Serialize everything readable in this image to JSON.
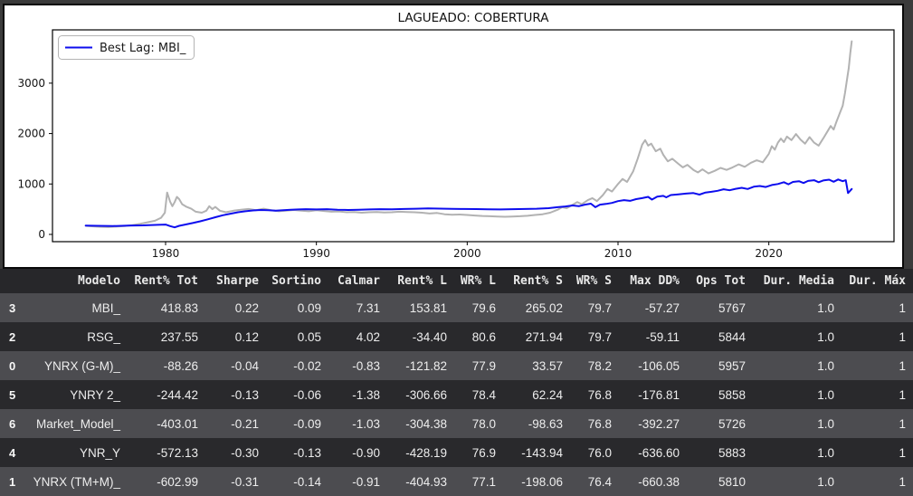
{
  "colors": {
    "page_bg": "#3b3b3b",
    "figure_bg": "#ffffff",
    "mbi_line": "#0d0dee",
    "benchmark_line": "#b2b2b2",
    "table_header_bg": "#27272a",
    "row_light": "#4c4c50",
    "row_dark": "#29292c"
  },
  "chart_data": {
    "type": "line",
    "title": "LAGUEADO: COBERTURA",
    "legend_label": "Best Lag: MBI_",
    "legend_position": "upper left",
    "xlabel": "",
    "ylabel": "",
    "x_ticks": [
      1980,
      1990,
      2000,
      2010,
      2020
    ],
    "y_ticks": [
      0,
      1000,
      2000,
      3000
    ],
    "xlim": [
      1972.5,
      2028.3
    ],
    "ylim": [
      -144,
      4057
    ],
    "grid": false,
    "series": [
      {
        "name": "COBERTURA",
        "color": "#b2b2b2",
        "points": [
          [
            1974.7,
            170
          ],
          [
            1975.2,
            160
          ],
          [
            1975.7,
            150
          ],
          [
            1976.2,
            145
          ],
          [
            1976.8,
            155
          ],
          [
            1977.3,
            165
          ],
          [
            1977.8,
            185
          ],
          [
            1978.3,
            210
          ],
          [
            1978.8,
            240
          ],
          [
            1979.3,
            270
          ],
          [
            1979.7,
            330
          ],
          [
            1979.95,
            430
          ],
          [
            1980.1,
            830
          ],
          [
            1980.3,
            650
          ],
          [
            1980.45,
            560
          ],
          [
            1980.6,
            640
          ],
          [
            1980.75,
            745
          ],
          [
            1980.9,
            700
          ],
          [
            1981.1,
            600
          ],
          [
            1981.4,
            545
          ],
          [
            1981.7,
            510
          ],
          [
            1982.0,
            450
          ],
          [
            1982.4,
            430
          ],
          [
            1982.7,
            470
          ],
          [
            1982.9,
            560
          ],
          [
            1983.1,
            500
          ],
          [
            1983.3,
            545
          ],
          [
            1983.6,
            470
          ],
          [
            1984.0,
            440
          ],
          [
            1984.5,
            470
          ],
          [
            1985.0,
            490
          ],
          [
            1985.5,
            505
          ],
          [
            1986.0,
            480
          ],
          [
            1986.5,
            510
          ],
          [
            1987.0,
            480
          ],
          [
            1987.5,
            460
          ],
          [
            1988.0,
            470
          ],
          [
            1988.5,
            485
          ],
          [
            1989.0,
            470
          ],
          [
            1989.5,
            460
          ],
          [
            1990.0,
            480
          ],
          [
            1990.5,
            465
          ],
          [
            1991.0,
            450
          ],
          [
            1991.5,
            455
          ],
          [
            1992.0,
            440
          ],
          [
            1992.5,
            445
          ],
          [
            1993.0,
            430
          ],
          [
            1993.5,
            440
          ],
          [
            1994.0,
            445
          ],
          [
            1994.5,
            435
          ],
          [
            1995.0,
            440
          ],
          [
            1995.5,
            450
          ],
          [
            1996.0,
            445
          ],
          [
            1996.5,
            440
          ],
          [
            1997.0,
            430
          ],
          [
            1997.5,
            415
          ],
          [
            1998.0,
            425
          ],
          [
            1998.5,
            400
          ],
          [
            1999.0,
            390
          ],
          [
            1999.5,
            395
          ],
          [
            2000.0,
            385
          ],
          [
            2000.5,
            375
          ],
          [
            2001.0,
            365
          ],
          [
            2001.5,
            360
          ],
          [
            2002.0,
            355
          ],
          [
            2002.5,
            350
          ],
          [
            2003.0,
            355
          ],
          [
            2003.5,
            360
          ],
          [
            2004.0,
            370
          ],
          [
            2004.5,
            385
          ],
          [
            2005.0,
            400
          ],
          [
            2005.5,
            430
          ],
          [
            2006.0,
            490
          ],
          [
            2006.3,
            540
          ],
          [
            2006.6,
            520
          ],
          [
            2007.0,
            590
          ],
          [
            2007.3,
            640
          ],
          [
            2007.6,
            600
          ],
          [
            2008.0,
            680
          ],
          [
            2008.3,
            720
          ],
          [
            2008.6,
            660
          ],
          [
            2009.0,
            780
          ],
          [
            2009.3,
            900
          ],
          [
            2009.6,
            850
          ],
          [
            2010.0,
            1000
          ],
          [
            2010.3,
            1100
          ],
          [
            2010.6,
            1040
          ],
          [
            2011.0,
            1250
          ],
          [
            2011.3,
            1500
          ],
          [
            2011.6,
            1780
          ],
          [
            2011.8,
            1870
          ],
          [
            2012.0,
            1760
          ],
          [
            2012.2,
            1800
          ],
          [
            2012.5,
            1650
          ],
          [
            2012.8,
            1700
          ],
          [
            2013.0,
            1580
          ],
          [
            2013.3,
            1450
          ],
          [
            2013.6,
            1500
          ],
          [
            2014.0,
            1400
          ],
          [
            2014.3,
            1330
          ],
          [
            2014.6,
            1380
          ],
          [
            2015.0,
            1280
          ],
          [
            2015.3,
            1230
          ],
          [
            2015.6,
            1290
          ],
          [
            2016.0,
            1210
          ],
          [
            2016.4,
            1260
          ],
          [
            2016.8,
            1320
          ],
          [
            2017.2,
            1280
          ],
          [
            2017.6,
            1330
          ],
          [
            2018.0,
            1390
          ],
          [
            2018.4,
            1340
          ],
          [
            2018.8,
            1420
          ],
          [
            2019.2,
            1470
          ],
          [
            2019.6,
            1430
          ],
          [
            2020.0,
            1600
          ],
          [
            2020.2,
            1750
          ],
          [
            2020.4,
            1680
          ],
          [
            2020.6,
            1820
          ],
          [
            2020.8,
            1900
          ],
          [
            2021.0,
            1830
          ],
          [
            2021.2,
            1940
          ],
          [
            2021.5,
            1870
          ],
          [
            2021.8,
            1990
          ],
          [
            2022.1,
            1880
          ],
          [
            2022.4,
            1800
          ],
          [
            2022.7,
            1930
          ],
          [
            2023.0,
            1820
          ],
          [
            2023.3,
            1760
          ],
          [
            2023.6,
            1900
          ],
          [
            2023.9,
            2050
          ],
          [
            2024.1,
            2150
          ],
          [
            2024.3,
            2080
          ],
          [
            2024.5,
            2250
          ],
          [
            2024.7,
            2400
          ],
          [
            2024.9,
            2550
          ],
          [
            2025.05,
            2800
          ],
          [
            2025.2,
            3100
          ],
          [
            2025.3,
            3300
          ],
          [
            2025.4,
            3600
          ],
          [
            2025.5,
            3830
          ]
        ]
      },
      {
        "name": "Best Lag: MBI_",
        "color": "#0d0dee",
        "points": [
          [
            1974.7,
            175
          ],
          [
            1975.5,
            170
          ],
          [
            1976.5,
            165
          ],
          [
            1977.5,
            175
          ],
          [
            1978.5,
            180
          ],
          [
            1979.5,
            190
          ],
          [
            1980.0,
            195
          ],
          [
            1980.3,
            165
          ],
          [
            1980.6,
            140
          ],
          [
            1980.9,
            170
          ],
          [
            1981.3,
            195
          ],
          [
            1981.8,
            225
          ],
          [
            1982.3,
            260
          ],
          [
            1982.8,
            300
          ],
          [
            1983.3,
            340
          ],
          [
            1983.8,
            380
          ],
          [
            1984.3,
            410
          ],
          [
            1984.8,
            440
          ],
          [
            1985.3,
            460
          ],
          [
            1985.8,
            475
          ],
          [
            1986.3,
            485
          ],
          [
            1986.8,
            480
          ],
          [
            1987.3,
            470
          ],
          [
            1987.8,
            480
          ],
          [
            1988.3,
            490
          ],
          [
            1988.8,
            495
          ],
          [
            1989.3,
            500
          ],
          [
            1990.0,
            495
          ],
          [
            1990.7,
            500
          ],
          [
            1991.4,
            490
          ],
          [
            1992.1,
            485
          ],
          [
            1992.8,
            490
          ],
          [
            1993.5,
            495
          ],
          [
            1994.2,
            500
          ],
          [
            1995.0,
            498
          ],
          [
            1995.8,
            505
          ],
          [
            1996.6,
            510
          ],
          [
            1997.4,
            515
          ],
          [
            1998.2,
            512
          ],
          [
            1999.0,
            508
          ],
          [
            1999.8,
            505
          ],
          [
            2000.6,
            502
          ],
          [
            2001.4,
            498
          ],
          [
            2002.2,
            495
          ],
          [
            2003.0,
            500
          ],
          [
            2003.8,
            505
          ],
          [
            2004.6,
            510
          ],
          [
            2005.4,
            520
          ],
          [
            2006.0,
            540
          ],
          [
            2006.5,
            555
          ],
          [
            2007.0,
            575
          ],
          [
            2007.4,
            560
          ],
          [
            2007.8,
            590
          ],
          [
            2008.2,
            610
          ],
          [
            2008.5,
            540
          ],
          [
            2008.8,
            590
          ],
          [
            2009.2,
            605
          ],
          [
            2009.6,
            625
          ],
          [
            2010.0,
            660
          ],
          [
            2010.4,
            680
          ],
          [
            2010.8,
            665
          ],
          [
            2011.2,
            700
          ],
          [
            2011.6,
            720
          ],
          [
            2012.0,
            745
          ],
          [
            2012.25,
            690
          ],
          [
            2012.6,
            750
          ],
          [
            2013.0,
            765
          ],
          [
            2013.2,
            735
          ],
          [
            2013.5,
            780
          ],
          [
            2014.0,
            795
          ],
          [
            2014.5,
            810
          ],
          [
            2015.0,
            820
          ],
          [
            2015.4,
            790
          ],
          [
            2015.8,
            830
          ],
          [
            2016.2,
            845
          ],
          [
            2016.6,
            865
          ],
          [
            2017.0,
            895
          ],
          [
            2017.4,
            875
          ],
          [
            2017.8,
            905
          ],
          [
            2018.2,
            925
          ],
          [
            2018.6,
            900
          ],
          [
            2019.0,
            945
          ],
          [
            2019.4,
            960
          ],
          [
            2019.8,
            940
          ],
          [
            2020.2,
            980
          ],
          [
            2020.6,
            1000
          ],
          [
            2021.0,
            1035
          ],
          [
            2021.3,
            995
          ],
          [
            2021.6,
            1040
          ],
          [
            2022.0,
            1055
          ],
          [
            2022.3,
            1020
          ],
          [
            2022.6,
            1060
          ],
          [
            2023.0,
            1075
          ],
          [
            2023.3,
            1035
          ],
          [
            2023.6,
            1070
          ],
          [
            2024.0,
            1085
          ],
          [
            2024.3,
            1045
          ],
          [
            2024.6,
            1090
          ],
          [
            2024.9,
            1055
          ],
          [
            2025.1,
            1075
          ],
          [
            2025.25,
            820
          ],
          [
            2025.35,
            850
          ],
          [
            2025.5,
            900
          ]
        ]
      }
    ]
  },
  "table": {
    "columns": [
      "Modelo",
      "Rent% Tot",
      "Sharpe",
      "Sortino",
      "Calmar",
      "Rent% L",
      "WR% L",
      "Rent% S",
      "WR% S",
      "Max DD%",
      "Ops Tot",
      "Dur. Media",
      "Dur. Máx"
    ],
    "rows": [
      {
        "idx": "3",
        "cells": [
          "MBI_",
          "418.83",
          "0.22",
          "0.09",
          "7.31",
          "153.81",
          "79.6",
          "265.02",
          "79.7",
          "-57.27",
          "5767",
          "1.0",
          "1"
        ]
      },
      {
        "idx": "2",
        "cells": [
          "RSG_",
          "237.55",
          "0.12",
          "0.05",
          "4.02",
          "-34.40",
          "80.6",
          "271.94",
          "79.7",
          "-59.11",
          "5844",
          "1.0",
          "1"
        ]
      },
      {
        "idx": "0",
        "cells": [
          "YNRX (G-M)_",
          "-88.26",
          "-0.04",
          "-0.02",
          "-0.83",
          "-121.82",
          "77.9",
          "33.57",
          "78.2",
          "-106.05",
          "5957",
          "1.0",
          "1"
        ]
      },
      {
        "idx": "5",
        "cells": [
          "YNRY 2_",
          "-244.42",
          "-0.13",
          "-0.06",
          "-1.38",
          "-306.66",
          "78.4",
          "62.24",
          "76.8",
          "-176.81",
          "5858",
          "1.0",
          "1"
        ]
      },
      {
        "idx": "6",
        "cells": [
          "Market_Model_",
          "-403.01",
          "-0.21",
          "-0.09",
          "-1.03",
          "-304.38",
          "78.0",
          "-98.63",
          "76.8",
          "-392.27",
          "5726",
          "1.0",
          "1"
        ]
      },
      {
        "idx": "4",
        "cells": [
          "YNR_Y",
          "-572.13",
          "-0.30",
          "-0.13",
          "-0.90",
          "-428.19",
          "76.9",
          "-143.94",
          "76.0",
          "-636.60",
          "5883",
          "1.0",
          "1"
        ]
      },
      {
        "idx": "1",
        "cells": [
          "YNRX (TM+M)_",
          "-602.99",
          "-0.31",
          "-0.14",
          "-0.91",
          "-404.93",
          "77.1",
          "-198.06",
          "76.4",
          "-660.38",
          "5810",
          "1.0",
          "1"
        ]
      }
    ]
  }
}
